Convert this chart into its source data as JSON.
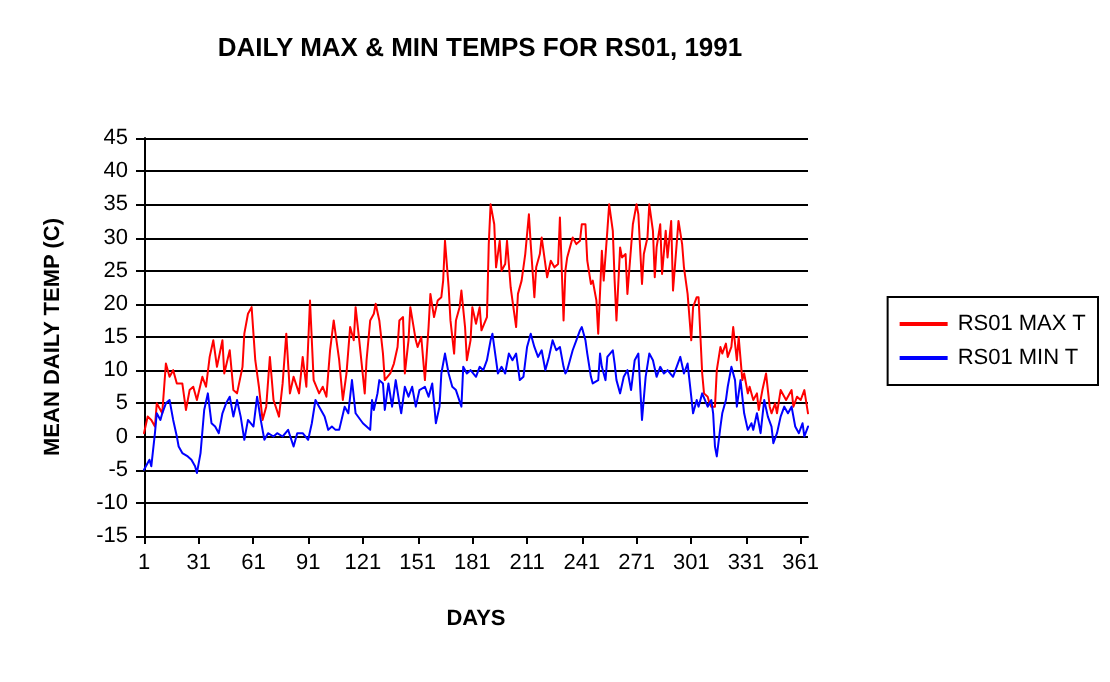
{
  "chart_data": {
    "type": "line",
    "title": "DAILY MAX & MIN TEMPS FOR RS01, 1991",
    "xlabel": "DAYS",
    "ylabel": "MEAN DAILY TEMP (C)",
    "xlim": [
      1,
      365
    ],
    "xticks": [
      1,
      31,
      61,
      91,
      121,
      151,
      181,
      211,
      241,
      271,
      301,
      331,
      361
    ],
    "ylim": [
      -15,
      45
    ],
    "yticks": [
      -15,
      -10,
      -5,
      0,
      5,
      10,
      15,
      20,
      25,
      30,
      35,
      40,
      45
    ],
    "grid": "y",
    "legend": "right",
    "marker": "none",
    "line_style": "solid",
    "series": [
      {
        "name": "RS01 MAX T",
        "color": "#ff0000",
        "x": [
          1,
          3,
          5,
          7,
          8,
          11,
          13,
          15,
          17,
          19,
          22,
          24,
          26,
          28,
          30,
          33,
          35,
          37,
          39,
          41,
          44,
          45,
          48,
          50,
          52,
          55,
          56,
          58,
          60,
          62,
          64,
          66,
          68,
          70,
          72,
          75,
          77,
          79,
          81,
          83,
          86,
          88,
          90,
          92,
          94,
          97,
          99,
          101,
          103,
          105,
          108,
          110,
          112,
          114,
          116,
          117,
          119,
          122,
          123,
          125,
          127,
          128,
          130,
          132,
          133,
          136,
          138,
          140,
          141,
          143,
          144,
          146,
          147,
          150,
          151,
          153,
          155,
          157,
          158,
          160,
          162,
          164,
          165,
          166,
          168,
          169,
          171,
          172,
          174,
          175,
          177,
          178,
          180,
          181,
          183,
          185,
          186,
          189,
          190,
          191,
          193,
          194,
          196,
          197,
          199,
          200,
          202,
          203,
          205,
          206,
          208,
          210,
          212,
          213,
          215,
          216,
          218,
          219,
          222,
          224,
          226,
          228,
          229,
          231,
          232,
          233,
          236,
          238,
          240,
          241,
          243,
          244,
          246,
          247,
          249,
          250,
          252,
          253,
          255,
          256,
          258,
          259,
          260,
          262,
          263,
          265,
          266,
          268,
          269,
          271,
          272,
          274,
          275,
          277,
          278,
          280,
          281,
          282,
          284,
          285,
          287,
          288,
          290,
          291,
          293,
          294,
          296,
          297,
          299,
          301,
          302,
          304,
          305,
          307,
          308,
          310,
          311,
          312,
          314,
          315,
          317,
          318,
          320,
          321,
          323,
          324,
          326,
          327,
          329,
          330,
          332,
          333,
          335,
          337,
          338,
          340,
          342,
          344,
          345,
          347,
          348,
          350,
          352,
          353,
          356,
          357,
          359,
          361,
          363,
          365
        ],
        "values": [
          0.5,
          3,
          2.5,
          1.5,
          5,
          3.5,
          11,
          9,
          10,
          8,
          8,
          4,
          7,
          7.5,
          5.5,
          9,
          7.5,
          12,
          14.5,
          10.5,
          14.5,
          9.5,
          13,
          7,
          6.5,
          10.5,
          15.5,
          18.5,
          19.5,
          11.5,
          7.5,
          2.5,
          4.5,
          12,
          5.5,
          3,
          8,
          15.5,
          6.5,
          9,
          6.5,
          12,
          7.5,
          20.5,
          8.5,
          6.5,
          7.5,
          6,
          13,
          17.5,
          11.5,
          5.5,
          9.5,
          16.5,
          14.5,
          19.5,
          14.5,
          6.5,
          11.5,
          17.5,
          18.5,
          20,
          17.5,
          12.5,
          8.5,
          9.5,
          11,
          13.5,
          17.5,
          18,
          9.5,
          14.5,
          19.5,
          14.5,
          13.5,
          15,
          8.5,
          16.5,
          21.5,
          18,
          20.5,
          21,
          23.5,
          29.5,
          22.5,
          17.5,
          12.5,
          17.5,
          19.5,
          22,
          16.5,
          11.5,
          14.5,
          19.5,
          17,
          19.5,
          16,
          18,
          29,
          35,
          32,
          25.5,
          29.5,
          25,
          26,
          29.5,
          22.5,
          20.5,
          16.5,
          21.5,
          23.5,
          27.5,
          33.5,
          29,
          21,
          25.5,
          27.5,
          30,
          24,
          26.5,
          25.5,
          26,
          33,
          17.5,
          25,
          27,
          30,
          29,
          29.5,
          32,
          32,
          26.5,
          23,
          23.5,
          20.5,
          15.5,
          28,
          23.5,
          31,
          35,
          31,
          23.5,
          17.5,
          28.5,
          27,
          27.5,
          21.5,
          28.5,
          32,
          35,
          33.5,
          23,
          27.5,
          30,
          35,
          31,
          24,
          28.5,
          32,
          24.5,
          31,
          27,
          32.5,
          22,
          29,
          32.5,
          29,
          25.5,
          21.5,
          14.5,
          19.5,
          21,
          21,
          9.5,
          6.5,
          6,
          5,
          4.5,
          4.5,
          10,
          13.5,
          12.5,
          14,
          12,
          13.5,
          16.5,
          11.5,
          15,
          8.5,
          9.5,
          6.5,
          7.5,
          5.5,
          6.5,
          4,
          7,
          9.5,
          4.5,
          3.5,
          5,
          3.5,
          7,
          6,
          5.5,
          7,
          4.5,
          6,
          5.5,
          7,
          3.5
        ]
      },
      {
        "name": "RS01 MIN T",
        "color": "#0000ff",
        "x": [
          1,
          3,
          4,
          5,
          7,
          8,
          10,
          11,
          13,
          15,
          17,
          19,
          20,
          22,
          25,
          27,
          29,
          30,
          32,
          34,
          36,
          38,
          40,
          42,
          44,
          46,
          48,
          50,
          52,
          54,
          56,
          58,
          61,
          63,
          65,
          67,
          69,
          72,
          74,
          77,
          80,
          83,
          85,
          88,
          91,
          93,
          95,
          97,
          100,
          102,
          104,
          106,
          108,
          111,
          113,
          115,
          117,
          121,
          123,
          125,
          126,
          127,
          129,
          130,
          132,
          133,
          135,
          137,
          139,
          141,
          142,
          144,
          146,
          148,
          150,
          152,
          155,
          157,
          159,
          161,
          163,
          164,
          166,
          168,
          170,
          172,
          175,
          176,
          178,
          180,
          183,
          185,
          187,
          189,
          191,
          192,
          194,
          195,
          197,
          199,
          201,
          203,
          205,
          207,
          209,
          211,
          213,
          215,
          217,
          219,
          221,
          223,
          225,
          227,
          229,
          231,
          232,
          233,
          236,
          238,
          240,
          241,
          243,
          244,
          246,
          247,
          250,
          251,
          252,
          254,
          255,
          258,
          259,
          260,
          262,
          264,
          266,
          268,
          270,
          272,
          274,
          276,
          278,
          280,
          282,
          284,
          286,
          288,
          291,
          293,
          295,
          297,
          299,
          301,
          302,
          304,
          305,
          307,
          310,
          312,
          313,
          314,
          315,
          317,
          318,
          320,
          321,
          323,
          325,
          326,
          328,
          330,
          332,
          334,
          335,
          337,
          339,
          341,
          343,
          345,
          346,
          348,
          350,
          352,
          354,
          356,
          358,
          360,
          362,
          363,
          365
        ],
        "values": [
          -5,
          -4,
          -3.5,
          -4.5,
          0.5,
          3.5,
          2.5,
          3.5,
          5,
          5.5,
          2.5,
          0,
          -1.5,
          -2.5,
          -3,
          -3.5,
          -4.5,
          -5.5,
          -2.5,
          4,
          6.5,
          2,
          1.5,
          0.5,
          3.5,
          5,
          6,
          3,
          5.5,
          3,
          -0.5,
          2.5,
          1.5,
          6,
          2.5,
          -0.5,
          0.5,
          0,
          0.5,
          0,
          1,
          -1.5,
          0.5,
          0.5,
          -0.5,
          2,
          5.5,
          4.5,
          3,
          1,
          1.5,
          1,
          1,
          4.5,
          3.5,
          8.5,
          3.5,
          2,
          1.5,
          1,
          5.5,
          4,
          6.5,
          8.5,
          8,
          4,
          8,
          4.5,
          8.5,
          5,
          3.5,
          7.5,
          6,
          7.5,
          4.5,
          7,
          7.5,
          6,
          8,
          2,
          4.5,
          9.5,
          12.5,
          9.5,
          7.5,
          7,
          4.5,
          10.5,
          9.5,
          10,
          9,
          10.5,
          10,
          11.5,
          14.5,
          15.5,
          11.5,
          9.5,
          10.5,
          9.5,
          12.5,
          11.5,
          12.5,
          8.5,
          9,
          13.5,
          15.5,
          13.5,
          12,
          13,
          10,
          12,
          14.5,
          13,
          13.5,
          10.5,
          9.5,
          10,
          13,
          14.5,
          16,
          16.5,
          14.5,
          12.5,
          9,
          8,
          8.5,
          12.5,
          10.5,
          8.5,
          12,
          13,
          11,
          8.5,
          6.5,
          9,
          10,
          7,
          11.5,
          12.5,
          2.5,
          9,
          12.5,
          11.5,
          9,
          10.5,
          9.5,
          10,
          9,
          10.5,
          12,
          9.5,
          11,
          6,
          3.5,
          5.5,
          4.5,
          6.5,
          4.5,
          5.5,
          3.5,
          -1.5,
          -3,
          1.5,
          3.5,
          5.5,
          7.5,
          10.5,
          8.5,
          4.5,
          8.5,
          3.5,
          1,
          2,
          1,
          3.5,
          0.5,
          5.5,
          3,
          1.5,
          -1,
          0.5,
          3,
          4.5,
          3.5,
          4.5,
          1.5,
          0.5,
          2,
          0,
          1.5
        ]
      }
    ]
  }
}
